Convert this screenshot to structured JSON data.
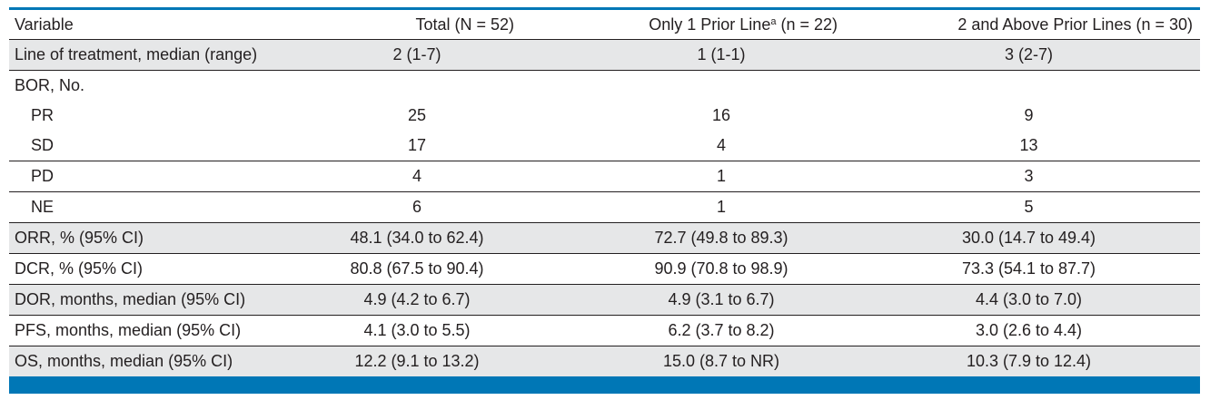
{
  "table": {
    "headers": {
      "variable": "Variable",
      "total": "Total (N = 52)",
      "one_prior_prefix": "Only 1 Prior Line",
      "one_prior_sup": "a",
      "one_prior_suffix": " (n = 22)",
      "two_above": "2 and Above Prior Lines (n = 30)"
    },
    "rows": [
      {
        "variable": "Line of treatment, median (range)",
        "total": "2 (1-7)",
        "one": "1 (1-1)",
        "two": "3 (2-7)"
      },
      {
        "variable": "BOR, No.",
        "total": "",
        "one": "",
        "two": ""
      },
      {
        "variable": "PR",
        "total": "25",
        "one": "16",
        "two": "9"
      },
      {
        "variable": "SD",
        "total": "17",
        "one": "4",
        "two": "13"
      },
      {
        "variable": "PD",
        "total": "4",
        "one": "1",
        "two": "3"
      },
      {
        "variable": "NE",
        "total": "6",
        "one": "1",
        "two": "5"
      },
      {
        "variable": "ORR, % (95% CI)",
        "total": "48.1 (34.0 to 62.4)",
        "one": "72.7 (49.8 to 89.3)",
        "two": "30.0 (14.7 to 49.4)"
      },
      {
        "variable": "DCR, % (95% CI)",
        "total": "80.8 (67.5 to 90.4)",
        "one": "90.9 (70.8 to 98.9)",
        "two": "73.3 (54.1 to 87.7)"
      },
      {
        "variable": "DOR, months, median (95% CI)",
        "total": "4.9 (4.2 to 6.7)",
        "one": "4.9 (3.1 to 6.7)",
        "two": "4.4 (3.0 to 7.0)"
      },
      {
        "variable": "PFS, months, median (95% CI)",
        "total": "4.1 (3.0 to 5.5)",
        "one": "6.2 (3.7 to 8.2)",
        "two": "3.0 (2.6 to 4.4)"
      },
      {
        "variable": "OS, months, median (95% CI)",
        "total": "12.2 (9.1 to 13.2)",
        "one": "15.0 (8.7 to NR)",
        "two": "10.3 (7.9 to 12.4)"
      }
    ]
  },
  "colors": {
    "rule_blue": "#0077b6",
    "shade_gray": "#e6e7e8",
    "text": "#231f20"
  }
}
